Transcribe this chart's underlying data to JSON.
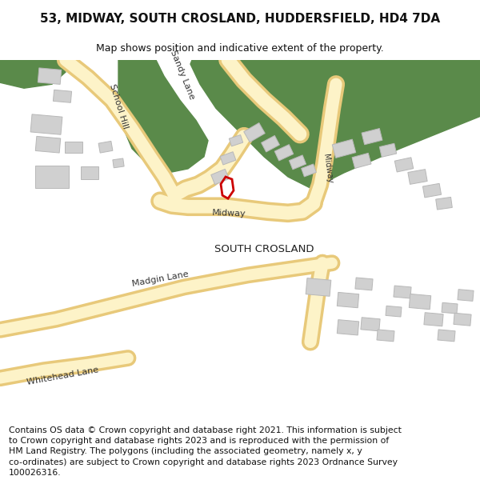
{
  "title": "53, MIDWAY, SOUTH CROSLAND, HUDDERSFIELD, HD4 7DA",
  "subtitle": "Map shows position and indicative extent of the property.",
  "footer": "Contains OS data © Crown copyright and database right 2021. This information is subject\nto Crown copyright and database rights 2023 and is reproduced with the permission of\nHM Land Registry. The polygons (including the associated geometry, namely x, y\nco-ordinates) are subject to Crown copyright and database rights 2023 Ordnance Survey\n100026316.",
  "bg_color": "#ffffff",
  "map_bg": "#f2f0eb",
  "road_fill": "#fdf3c8",
  "road_stroke": "#e8c97a",
  "green_color": "#5a8a4a",
  "building_color": "#d0d0d0",
  "building_edge": "#b8b8b8",
  "red_color": "#cc0000",
  "title_fontsize": 11,
  "subtitle_fontsize": 9,
  "footer_fontsize": 7.8,
  "label_fontsize": 8.0,
  "label_fontsize_small": 7.0,
  "south_crosland_fontsize": 9.5
}
